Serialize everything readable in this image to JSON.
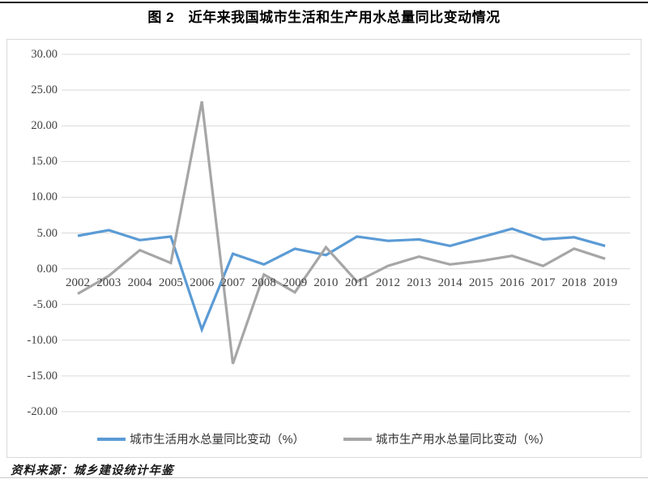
{
  "page": {
    "title": "图 2　近年来我国城市生活和生产用水总量同比变动情况",
    "source_note": "资料来源：城乡建设统计年鉴"
  },
  "chart_data": {
    "type": "line",
    "title": "图 2　近年来我国城市生活和生产用水总量同比变动情况",
    "x": [
      "2002",
      "2003",
      "2004",
      "2005",
      "2006",
      "2007",
      "2008",
      "2009",
      "2010",
      "2011",
      "2012",
      "2013",
      "2014",
      "2015",
      "2016",
      "2017",
      "2018",
      "2019"
    ],
    "series": [
      {
        "name": "城市生活用水总量同比变动（%）",
        "color": "#5B9BD5",
        "values": [
          4.6,
          5.4,
          4.0,
          4.5,
          -8.5,
          2.1,
          0.6,
          2.8,
          1.9,
          4.5,
          3.9,
          4.1,
          3.2,
          4.4,
          5.6,
          4.1,
          4.4,
          3.2
        ]
      },
      {
        "name": "城市生产用水总量同比变动（%）",
        "color": "#A6A6A6",
        "values": [
          -3.5,
          -1.0,
          2.6,
          0.8,
          23.4,
          -13.3,
          -0.8,
          -3.3,
          3.0,
          -1.8,
          0.4,
          1.7,
          0.6,
          1.1,
          1.8,
          0.4,
          2.8,
          1.4
        ]
      }
    ],
    "ylim": [
      -20,
      30
    ],
    "y_tick_step": 5,
    "y_tick_labels": [
      "30.00",
      "25.00",
      "20.00",
      "15.00",
      "10.00",
      "5.00",
      "0.00",
      "-5.00",
      "-10.00",
      "-15.00",
      "-20.00"
    ],
    "grid": true,
    "legend_position": "bottom",
    "gridline_color": "#D9D9D9",
    "axis_label_color": "#404040"
  }
}
